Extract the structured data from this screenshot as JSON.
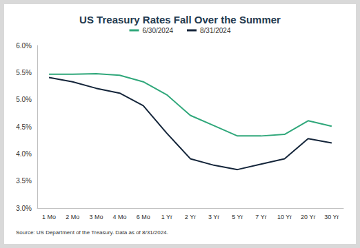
{
  "chart_data": {
    "type": "line",
    "title": "US Treasury Rates Fall Over the Summer",
    "source": "Source: US Department of the Treasury. Data as of 8/31/2024.",
    "categories": [
      "1 Mo",
      "2 Mo",
      "3 Mo",
      "4 Mo",
      "6 Mo",
      "1 Yr",
      "2 Yr",
      "3 Yr",
      "5 Yr",
      "7 Yr",
      "10 Yr",
      "20 Yr",
      "30 Yr"
    ],
    "series": [
      {
        "name": "6/30/2024",
        "color": "#2fa77a",
        "values": [
          5.47,
          5.47,
          5.48,
          5.45,
          5.33,
          5.09,
          4.71,
          4.52,
          4.33,
          4.33,
          4.36,
          4.61,
          4.51
        ]
      },
      {
        "name": "8/31/2024",
        "color": "#14253a",
        "values": [
          5.41,
          5.33,
          5.21,
          5.12,
          4.89,
          4.38,
          3.91,
          3.79,
          3.71,
          3.81,
          3.91,
          4.28,
          4.2
        ]
      }
    ],
    "ylim": [
      3,
      6
    ],
    "yticks": [
      {
        "value": 3,
        "label": "3.0%"
      },
      {
        "value": 3.5,
        "label": "3.5%"
      },
      {
        "value": 4,
        "label": "4.0%"
      },
      {
        "value": 4.5,
        "label": "4.5%"
      },
      {
        "value": 5,
        "label": "5.0%"
      },
      {
        "value": 5.5,
        "label": "5.5%"
      },
      {
        "value": 6,
        "label": "6.0%"
      }
    ],
    "grid": false,
    "legend": "top"
  }
}
